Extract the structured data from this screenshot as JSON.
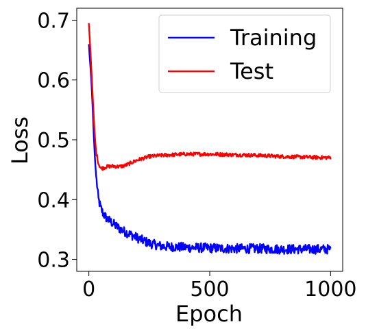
{
  "chart_data": {
    "type": "line",
    "xlabel": "Epoch",
    "ylabel": "Loss",
    "xlim": [
      -50,
      1050
    ],
    "ylim": [
      0.28,
      0.72
    ],
    "xticks": [
      0,
      500,
      1000
    ],
    "xtick_labels": [
      "0",
      "500",
      "1000"
    ],
    "yticks": [
      0.3,
      0.4,
      0.5,
      0.6,
      0.7
    ],
    "ytick_labels": [
      "0.3",
      "0.4",
      "0.5",
      "0.6",
      "0.7"
    ],
    "grid": false,
    "legend_position": "top-right",
    "series": [
      {
        "name": "Training",
        "color": "#0000ff",
        "x": [
          0,
          5,
          10,
          15,
          20,
          25,
          30,
          40,
          50,
          60,
          75,
          100,
          125,
          150,
          200,
          250,
          300,
          400,
          500,
          600,
          700,
          800,
          900,
          1000
        ],
        "y": [
          0.66,
          0.63,
          0.6,
          0.56,
          0.51,
          0.47,
          0.44,
          0.4,
          0.385,
          0.376,
          0.368,
          0.36,
          0.352,
          0.346,
          0.336,
          0.327,
          0.322,
          0.32,
          0.319,
          0.318,
          0.318,
          0.317,
          0.317,
          0.317
        ],
        "noise": 0.008
      },
      {
        "name": "Test",
        "color": "#ff0000",
        "x": [
          0,
          5,
          10,
          15,
          20,
          25,
          30,
          40,
          50,
          60,
          75,
          100,
          125,
          150,
          200,
          250,
          300,
          400,
          500,
          600,
          700,
          800,
          900,
          1000
        ],
        "y": [
          0.695,
          0.66,
          0.62,
          0.58,
          0.54,
          0.505,
          0.48,
          0.46,
          0.452,
          0.453,
          0.455,
          0.456,
          0.455,
          0.457,
          0.466,
          0.472,
          0.474,
          0.476,
          0.476,
          0.475,
          0.474,
          0.472,
          0.471,
          0.47
        ],
        "noise": 0.003
      }
    ]
  }
}
